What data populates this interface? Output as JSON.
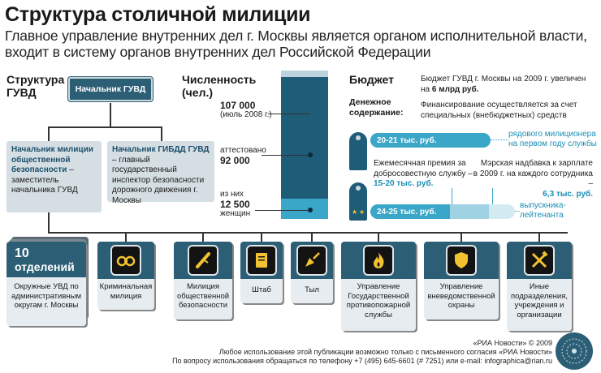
{
  "header": {
    "title": "Структура столичной милиции",
    "subtitle": "Главное управление внутренних дел г. Москвы является органом исполнительной власти, входит в систему органов внутренних дел Российской Федерации"
  },
  "structure": {
    "heading_line1": "Структура",
    "heading_line2": "ГУВД",
    "chief": "Начальник ГУВД",
    "public_security_title": "Начальник милиции общественной безопасности",
    "public_security_desc": "– заместитель начальника ГУВД",
    "traffic_title": "Начальник ГИБДД ГУВД",
    "traffic_desc": "– главный государственный инспектор безопасности дорожного движения г. Москвы"
  },
  "headcount": {
    "heading_line1": "Численность",
    "heading_line2": "(чел.)",
    "total_value": "107 000",
    "total_note": "(июль 2008 г.)",
    "attested_label": "аттестовано",
    "attested_value": "92 000",
    "women_prefix": "из них",
    "women_value": "12 500",
    "women_label": "женщин"
  },
  "budget": {
    "heading": "Бюджет",
    "line1": "Бюджет ГУВД г. Москвы на 2009 г. увеличен",
    "line1_prefix": "на",
    "line1_value": "6 млрд руб.",
    "salary_heading_1": "Денежное",
    "salary_heading_2": "содержание:",
    "financing_1": "Финансирование осуществляется за счет",
    "financing_2": "специальных (внебюджетных) средств",
    "pill1": "20-21 тыс. руб.",
    "pill1_label_1": "рядового милиционера",
    "pill1_label_2": "на первом году службы",
    "bonus_1": "Ежемесячная премия за",
    "bonus_2": "добросовестную службу –",
    "bonus_value": "15-20 тыс. руб.",
    "mayor_1": "Мэрская надбавка к зарплате",
    "mayor_2": "в 2009 г. на каждого сотрудника –",
    "mayor_value": "6,3 тыс. руб.",
    "pill2": "24-25 тыс. руб.",
    "pill2_label_1": "выпускника-",
    "pill2_label_2": "лейтенанта"
  },
  "units": [
    {
      "top_num": "10",
      "top_word": "отделений",
      "label": "Окружные УВД по административным округам г. Москвы",
      "icon": "none"
    },
    {
      "label": "Криминальная милиция",
      "icon": "handcuffs-icon"
    },
    {
      "label": "Милиция общественной безопасности",
      "icon": "baton-icon"
    },
    {
      "label": "Штаб",
      "icon": "folder-icon"
    },
    {
      "label": "Тыл",
      "icon": "shovel-icon"
    },
    {
      "label": "Управление Государственной противопожарной службы",
      "icon": "fire-icon"
    },
    {
      "label": "Управление вневедомственной охраны",
      "icon": "shield-icon"
    },
    {
      "label": "Иные подразделения, учреждения и организации",
      "icon": "tools-icon"
    }
  ],
  "footer": {
    "line1": "«РИА Новости» © 2009",
    "line2": "Любое использование этой публикации возможно только с письменного согласия «РИА Новости»",
    "line3": "По вопросу использования обращаться по телефону +7 (495) 645-6601 (# 7251) или e-mail: infographica@rian.ru"
  },
  "colors": {
    "dark_blue": "#2c5f76",
    "navy": "#1e5c78",
    "cyan": "#3aa6c8",
    "light_gray_blue": "#d5dee3"
  }
}
